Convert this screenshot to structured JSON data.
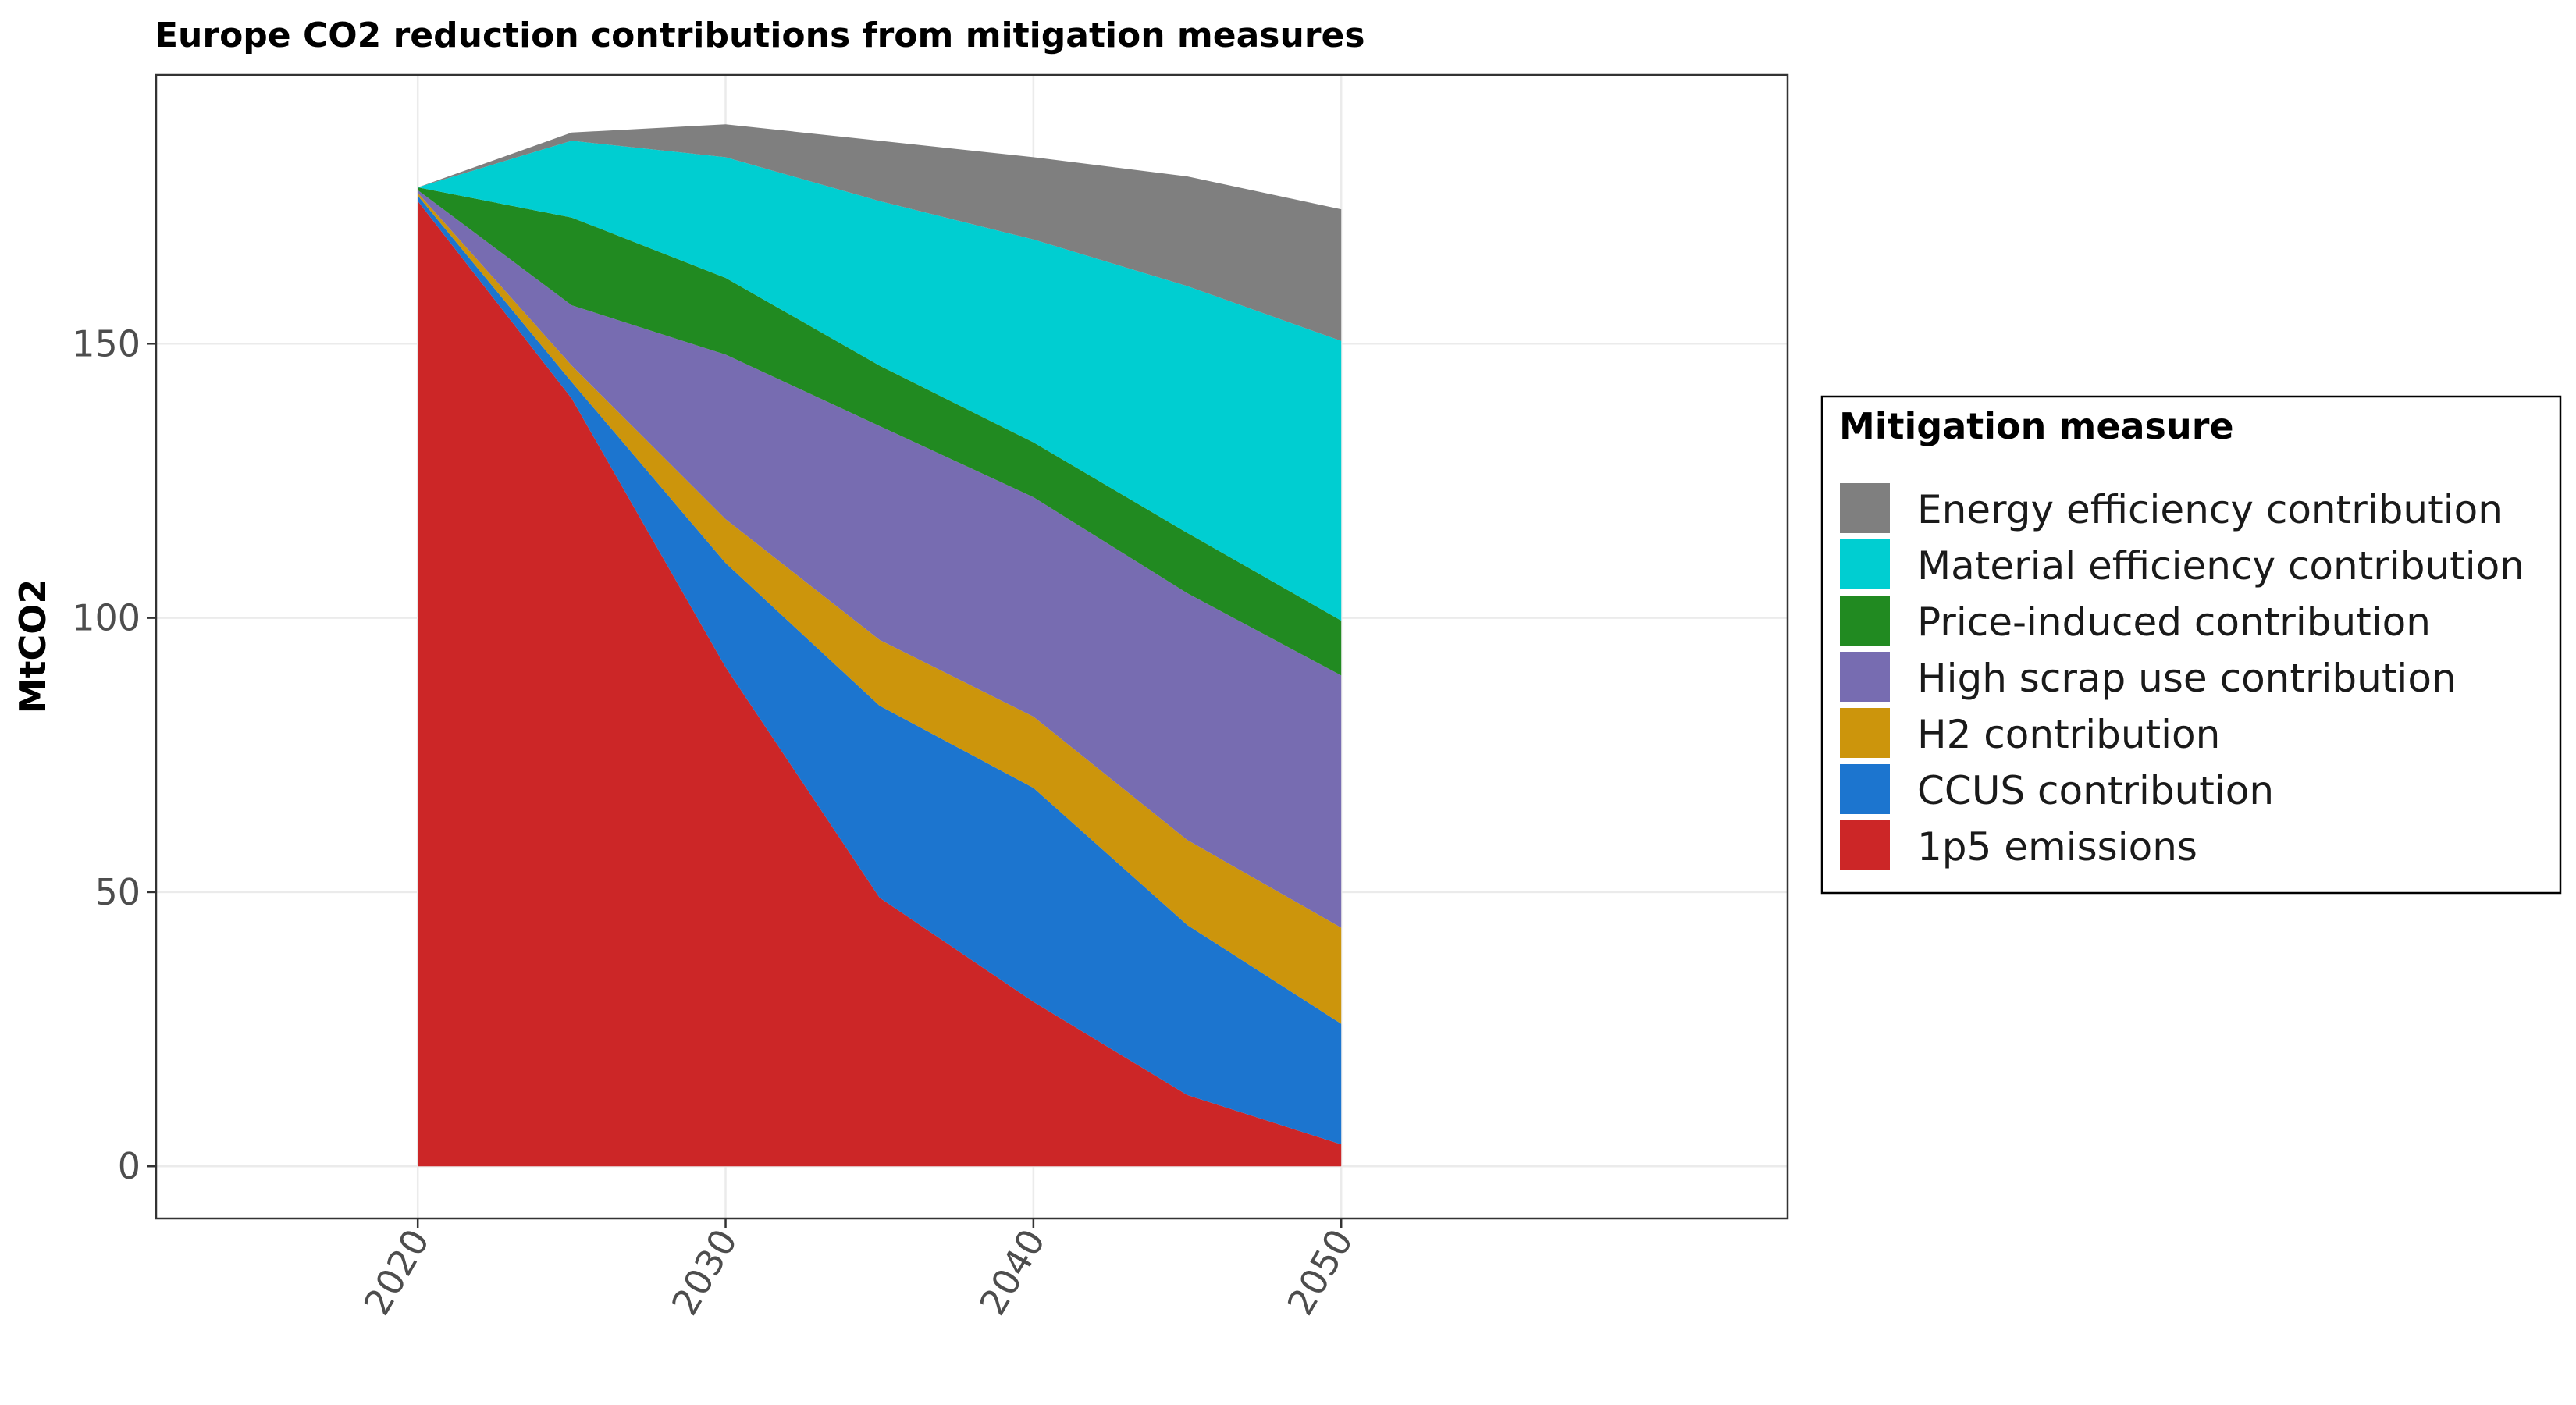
{
  "chart_data": {
    "type": "area",
    "stacked": true,
    "title": "Europe CO2 reduction contributions from mitigation measures",
    "xlabel": "",
    "ylabel": "MtCO2",
    "x": [
      2020,
      2025,
      2030,
      2035,
      2040,
      2045,
      2050
    ],
    "x_ticks": [
      "2020",
      "2030",
      "2040",
      "2050"
    ],
    "y_ticks": [
      "0",
      "50",
      "100",
      "150"
    ],
    "xlim": [
      2011.5,
      2064.5
    ],
    "ylim": [
      -9.5,
      199
    ],
    "grid": true,
    "legend_title": "Mitigation measure",
    "legend_position": "right",
    "series": [
      {
        "name": "1p5 emissions",
        "color": "#CC2627",
        "values": [
          176,
          140,
          91,
          49,
          30,
          13,
          4
        ]
      },
      {
        "name": "CCUS contribution",
        "color": "#1C75CF",
        "values": [
          1,
          3,
          19,
          35,
          39,
          31,
          22
        ]
      },
      {
        "name": "H2 contribution",
        "color": "#CC950C",
        "values": [
          0.5,
          3,
          8,
          12,
          13,
          15.5,
          17.5
        ]
      },
      {
        "name": "High scrap use contribution",
        "color": "#776CB1",
        "values": [
          0.5,
          11,
          30,
          39,
          40,
          45,
          46
        ]
      },
      {
        "name": "Price-induced contribution",
        "color": "#218A21",
        "values": [
          0.5,
          16,
          14,
          11,
          10,
          11,
          10
        ]
      },
      {
        "name": "Material efficiency contribution",
        "color": "#00CED1",
        "values": [
          0,
          14,
          22,
          30,
          37,
          45,
          51
        ]
      },
      {
        "name": "Energy efficiency contribution",
        "color": "#7F7F7F",
        "values": [
          0,
          1.5,
          6,
          11,
          15,
          20,
          24
        ]
      }
    ],
    "legend_order": [
      "Energy efficiency contribution",
      "Material efficiency contribution",
      "Price-induced contribution",
      "High scrap use contribution",
      "H2 contribution",
      "CCUS contribution",
      "1p5 emissions"
    ]
  }
}
